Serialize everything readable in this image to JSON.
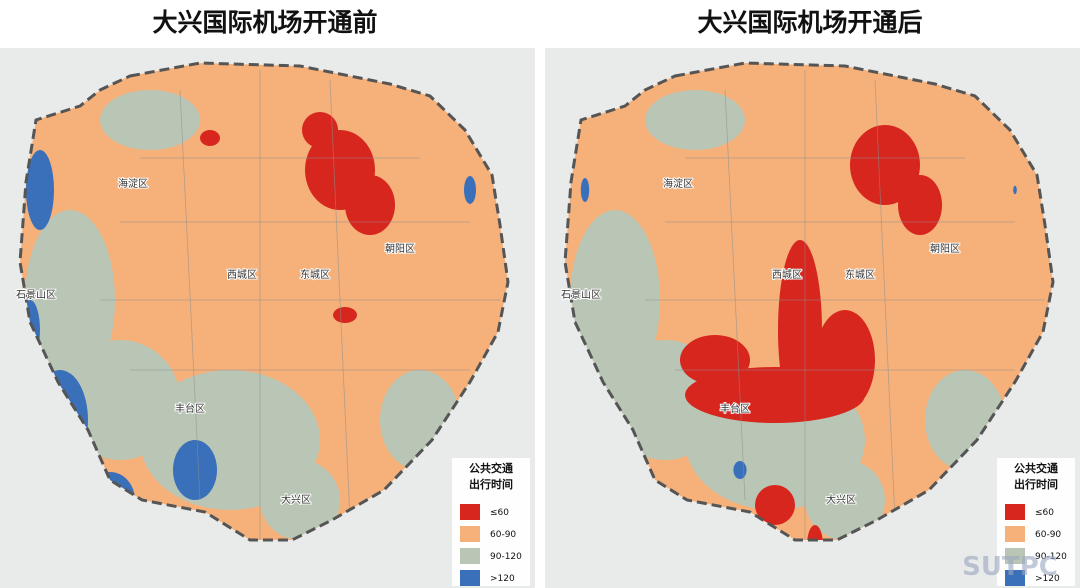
{
  "maps": [
    {
      "title": "大兴国际机场开通前",
      "districts": [
        "海淀区",
        "朝阳区",
        "西城区",
        "东城区",
        "石景山区",
        "丰台区",
        "大兴区"
      ],
      "legend": {
        "title": [
          "公共交通",
          "出行时间"
        ],
        "items": [
          {
            "label": "≤60",
            "color": "#d7261e"
          },
          {
            "label": "60-90",
            "color": "#f6b07a"
          },
          {
            "label": "90-120",
            "color": "#b9c6b6"
          },
          {
            "label": ">120",
            "color": "#3a6fba"
          }
        ]
      }
    },
    {
      "title": "大兴国际机场开通后",
      "districts": [
        "海淀区",
        "朝阳区",
        "西城区",
        "东城区",
        "石景山区",
        "丰台区",
        "大兴区"
      ],
      "legend": {
        "title": [
          "公共交通",
          "出行时间"
        ],
        "items": [
          {
            "label": "≤60",
            "color": "#d7261e"
          },
          {
            "label": "60-90",
            "color": "#f6b07a"
          },
          {
            "label": "90-120",
            "color": "#b9c6b6"
          },
          {
            "label": ">120",
            "color": "#3a6fba"
          }
        ]
      }
    }
  ],
  "watermark": "SUTPC"
}
